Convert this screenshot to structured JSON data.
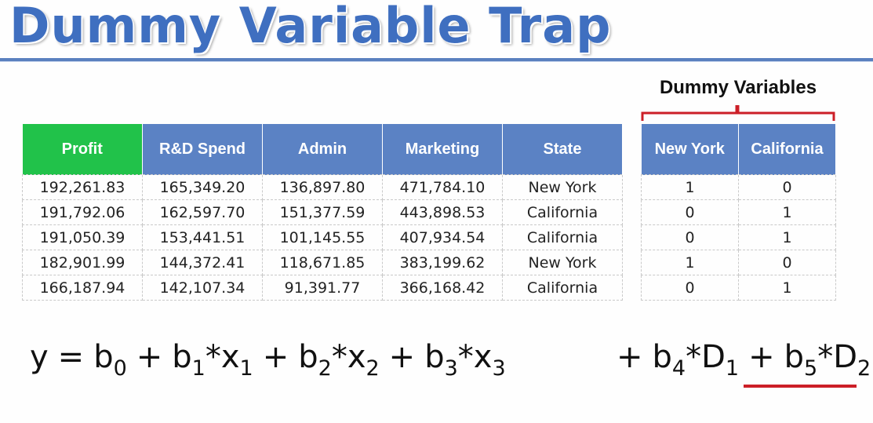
{
  "title": "Dummy Variable Trap",
  "dummy_label": "Dummy Variables",
  "main_table": {
    "headers": [
      "Profit",
      "R&D Spend",
      "Admin",
      "Marketing",
      "State"
    ],
    "rows": [
      [
        "192,261.83",
        "165,349.20",
        "136,897.80",
        "471,784.10",
        "New York"
      ],
      [
        "191,792.06",
        "162,597.70",
        "151,377.59",
        "443,898.53",
        "California"
      ],
      [
        "191,050.39",
        "153,441.51",
        "101,145.55",
        "407,934.54",
        "California"
      ],
      [
        "182,901.99",
        "144,372.41",
        "118,671.85",
        "383,199.62",
        "New York"
      ],
      [
        "166,187.94",
        "142,107.34",
        "91,391.77",
        "366,168.42",
        "California"
      ]
    ]
  },
  "dummy_table": {
    "headers": [
      "New York",
      "California"
    ],
    "rows": [
      [
        "1",
        "0"
      ],
      [
        "0",
        "1"
      ],
      [
        "0",
        "1"
      ],
      [
        "1",
        "0"
      ],
      [
        "0",
        "1"
      ]
    ]
  },
  "equation": {
    "y": "y",
    "eq": "=",
    "plus": "+",
    "star": "*",
    "b": "b",
    "x": "x",
    "D": "D",
    "s0": "0",
    "s1": "1",
    "s2": "2",
    "s3": "3",
    "s4": "4",
    "s5": "5"
  },
  "colors": {
    "title": "#3f6fc0",
    "header_blue": "#5b82c4",
    "header_green": "#21c24a",
    "accent_red": "#cc1f27"
  }
}
